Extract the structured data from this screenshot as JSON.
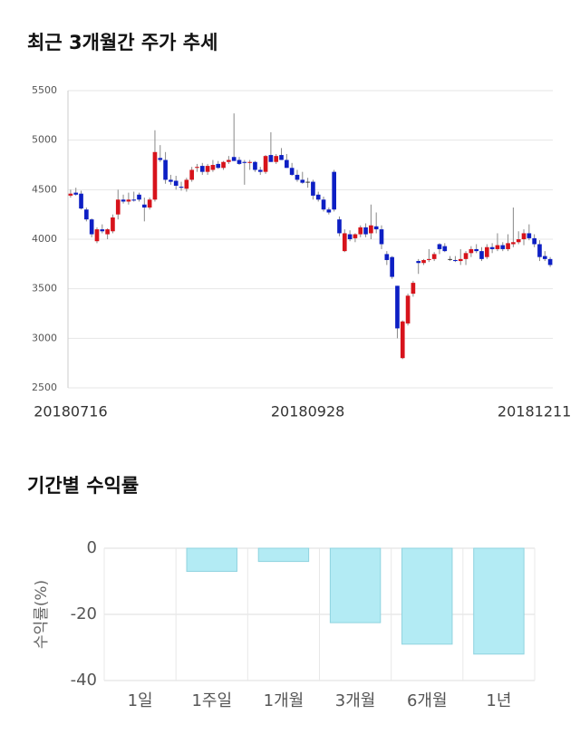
{
  "chart_data": [
    {
      "type": "candlestick",
      "title": "최근 3개월간 주가 추세",
      "categories": [
        "20180716",
        null,
        null,
        null,
        null,
        null,
        null,
        null,
        null,
        null,
        null,
        null,
        null,
        null,
        null,
        null,
        null,
        null,
        null,
        null,
        null,
        null,
        null,
        null,
        null,
        null,
        null,
        null,
        null,
        null,
        null,
        null,
        null,
        null,
        null,
        null,
        null,
        null,
        null,
        null,
        null,
        null,
        null,
        null,
        null,
        "20180928",
        null,
        null,
        null,
        null,
        null,
        null,
        null,
        null,
        null,
        null,
        null,
        null,
        null,
        null,
        null,
        null,
        null,
        null,
        null,
        null,
        null,
        null,
        null,
        null,
        null,
        null,
        null,
        null,
        null,
        null,
        null,
        null,
        null,
        null,
        null,
        null,
        null,
        null,
        null,
        null,
        null,
        null,
        "20181211",
        null,
        null,
        null
      ],
      "open": [
        4440,
        4470,
        4460,
        4300,
        4200,
        3980,
        4100,
        4050,
        4080,
        4250,
        4400,
        4380,
        4400,
        4450,
        4350,
        4320,
        4400,
        4820,
        4800,
        4600,
        4590,
        4530,
        4510,
        4600,
        4720,
        4740,
        4680,
        4700,
        4760,
        4720,
        4780,
        4830,
        4800,
        4780,
        4770,
        4780,
        4700,
        4680,
        4850,
        4780,
        4850,
        4800,
        4720,
        4650,
        4600,
        4580,
        4580,
        4450,
        4400,
        4300,
        4680,
        4200,
        3880,
        4050,
        4010,
        4050,
        4120,
        4060,
        4130,
        4100,
        3850,
        3820,
        3530,
        2800,
        3150,
        3450,
        3780,
        3760,
        3790,
        3800,
        3950,
        3930,
        3800,
        3790,
        3780,
        3800,
        3860,
        3900,
        3880,
        3820,
        3920,
        3900,
        3940,
        3900,
        3950,
        3970,
        4000,
        4060,
        4010,
        3950,
        3830,
        3800
      ],
      "high": [
        4500,
        4520,
        4490,
        4320,
        4210,
        4120,
        4150,
        4110,
        4250,
        4500,
        4450,
        4470,
        4480,
        4470,
        4420,
        4420,
        5100,
        4950,
        4880,
        4650,
        4640,
        4580,
        4620,
        4730,
        4760,
        4770,
        4760,
        4800,
        4790,
        4790,
        4840,
        5270,
        4830,
        4800,
        4800,
        4790,
        4730,
        4850,
        5080,
        4860,
        4920,
        4860,
        4770,
        4700,
        4680,
        4620,
        4600,
        4480,
        4430,
        4320,
        4700,
        4230,
        4100,
        4090,
        4060,
        4140,
        4160,
        4350,
        4270,
        4140,
        3880,
        3830,
        3530,
        3180,
        3450,
        3580,
        3800,
        3800,
        3900,
        3870,
        3960,
        3960,
        3830,
        3830,
        3900,
        3880,
        3930,
        3950,
        3920,
        3950,
        3960,
        4060,
        3970,
        4050,
        4320,
        4080,
        4100,
        4150,
        4050,
        3990,
        3880,
        3820
      ],
      "low": [
        4420,
        4440,
        4300,
        4180,
        4020,
        3960,
        4060,
        4000,
        4060,
        4200,
        4360,
        4350,
        4380,
        4380,
        4180,
        4300,
        4380,
        4780,
        4560,
        4550,
        4500,
        4490,
        4480,
        4580,
        4680,
        4650,
        4650,
        4680,
        4710,
        4700,
        4760,
        4790,
        4750,
        4550,
        4700,
        4680,
        4650,
        4660,
        4780,
        4760,
        4800,
        4720,
        4640,
        4580,
        4560,
        4520,
        4400,
        4380,
        4280,
        4250,
        4280,
        4030,
        3870,
        3980,
        3970,
        4020,
        4020,
        4000,
        4060,
        3900,
        3740,
        3600,
        3000,
        2790,
        3130,
        3420,
        3650,
        3740,
        3770,
        3780,
        3850,
        3870,
        3780,
        3770,
        3740,
        3740,
        3820,
        3860,
        3780,
        3800,
        3860,
        3880,
        3880,
        3880,
        3920,
        3950,
        3940,
        3990,
        3920,
        3780,
        3780,
        3720
      ],
      "close": [
        4460,
        4450,
        4310,
        4200,
        4050,
        4100,
        4080,
        4100,
        4220,
        4400,
        4380,
        4400,
        4390,
        4400,
        4320,
        4400,
        4880,
        4800,
        4600,
        4580,
        4540,
        4520,
        4600,
        4700,
        4730,
        4680,
        4740,
        4750,
        4720,
        4780,
        4800,
        4790,
        4760,
        4770,
        4780,
        4700,
        4680,
        4840,
        4780,
        4840,
        4800,
        4720,
        4650,
        4600,
        4570,
        4580,
        4440,
        4400,
        4300,
        4270,
        4300,
        4060,
        4060,
        4000,
        4050,
        4120,
        4050,
        4140,
        4100,
        3950,
        3790,
        3620,
        3100,
        3170,
        3430,
        3560,
        3760,
        3790,
        3800,
        3850,
        3900,
        3880,
        3800,
        3780,
        3800,
        3860,
        3900,
        3880,
        3800,
        3920,
        3900,
        3940,
        3900,
        3960,
        3970,
        4000,
        4060,
        4010,
        3950,
        3820,
        3800,
        3740
      ],
      "up_color": "#d7131b",
      "down_color": "#0d1fc4",
      "ylim": [
        2500,
        5500
      ],
      "yticks": [
        2500,
        3000,
        3500,
        4000,
        4500,
        5000,
        5500
      ],
      "grid": true
    },
    {
      "type": "bar",
      "title": "기간별 수익률",
      "ylabel": "수익률(%)",
      "categories": [
        "1일",
        "1주일",
        "1개월",
        "3개월",
        "6개월",
        "1년"
      ],
      "values": [
        0,
        -7,
        -4,
        -22.5,
        -29,
        -32
      ],
      "color": "#b3ebf4",
      "ylim": [
        -40,
        0
      ],
      "yticks": [
        -40,
        -20,
        0
      ],
      "grid": true
    }
  ]
}
